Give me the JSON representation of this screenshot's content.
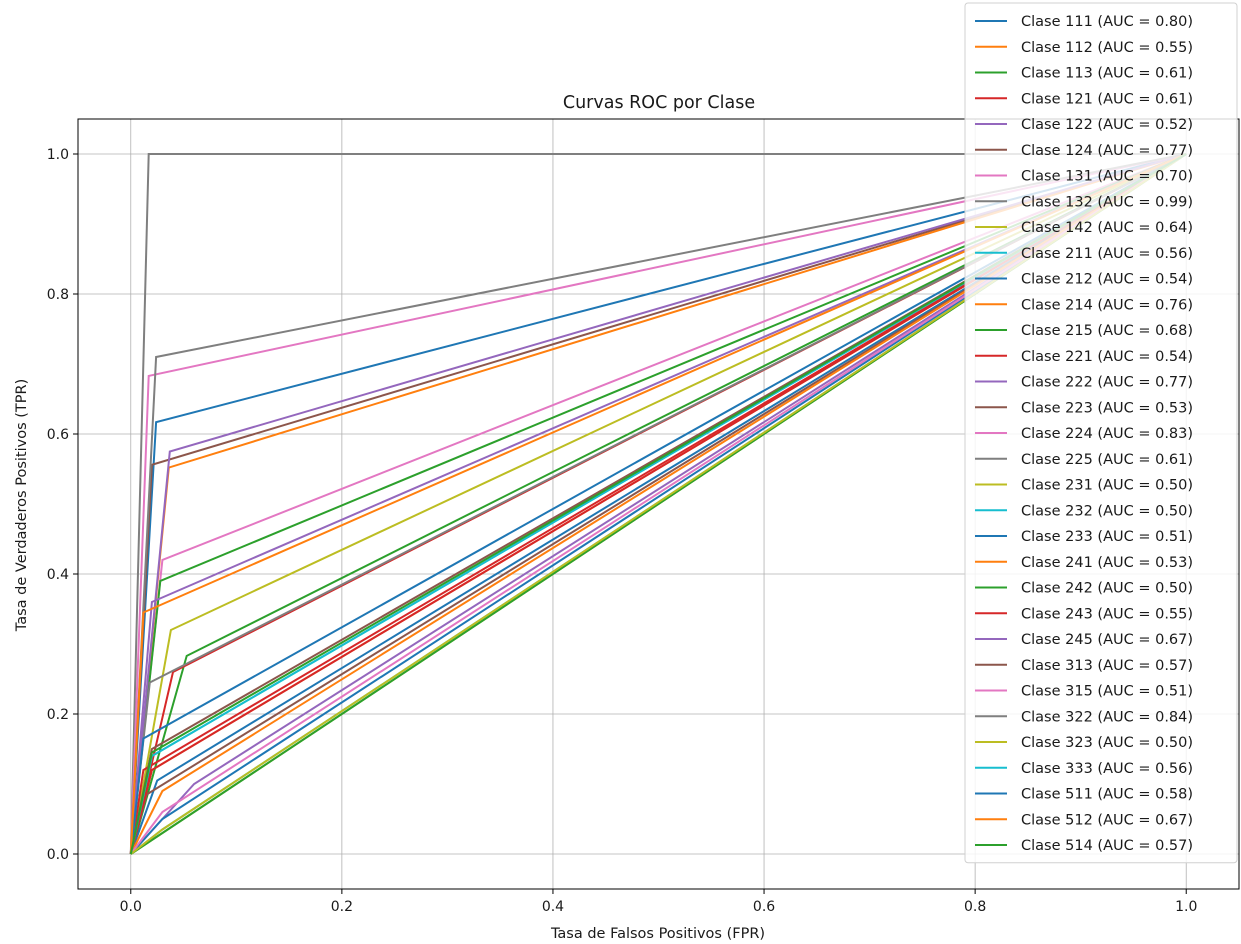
{
  "chart_data": {
    "type": "line",
    "title": "Curvas ROC por Clase",
    "xlabel": "Tasa de Falsos Positivos (FPR)",
    "ylabel": "Tasa de Verdaderos Positivos (TPR)",
    "xlim": [
      -0.05,
      1.05
    ],
    "ylim": [
      -0.05,
      1.05
    ],
    "xticks": [
      "0.0",
      "0.2",
      "0.4",
      "0.6",
      "0.8",
      "1.0"
    ],
    "yticks": [
      "0.0",
      "0.2",
      "0.4",
      "0.6",
      "0.8",
      "1.0"
    ],
    "grid": true,
    "legend_position": "top-right",
    "series": [
      {
        "name": "Clase 111 (AUC = 0.80)",
        "color": "#1f77b4",
        "x": [
          0,
          0.024,
          1
        ],
        "y": [
          0,
          0.617,
          1
        ]
      },
      {
        "name": "Clase 112 (AUC = 0.55)",
        "color": "#ff7f0e",
        "x": [
          0,
          0.02,
          1
        ],
        "y": [
          0,
          0.12,
          1
        ]
      },
      {
        "name": "Clase 113 (AUC = 0.61)",
        "color": "#2ca02c",
        "x": [
          0,
          0.053,
          1
        ],
        "y": [
          0,
          0.283,
          1
        ]
      },
      {
        "name": "Clase 121 (AUC = 0.61)",
        "color": "#d62728",
        "x": [
          0,
          0.04,
          1
        ],
        "y": [
          0,
          0.26,
          1
        ]
      },
      {
        "name": "Clase 122 (AUC = 0.52)",
        "color": "#9467bd",
        "x": [
          0,
          0.06,
          1
        ],
        "y": [
          0,
          0.1,
          1
        ]
      },
      {
        "name": "Clase 124 (AUC = 0.77)",
        "color": "#8c564b",
        "x": [
          0,
          0.02,
          1
        ],
        "y": [
          0,
          0.556,
          1
        ]
      },
      {
        "name": "Clase 131 (AUC = 0.70)",
        "color": "#e377c2",
        "x": [
          0,
          0.03,
          1
        ],
        "y": [
          0,
          0.42,
          1
        ]
      },
      {
        "name": "Clase 132 (AUC = 0.99)",
        "color": "#7f7f7f",
        "x": [
          0,
          0.017,
          1
        ],
        "y": [
          0,
          1.0,
          1
        ]
      },
      {
        "name": "Clase 142 (AUC = 0.64)",
        "color": "#bcbd22",
        "x": [
          0,
          0.038,
          1
        ],
        "y": [
          0,
          0.32,
          1
        ]
      },
      {
        "name": "Clase 211 (AUC = 0.56)",
        "color": "#17becf",
        "x": [
          0,
          0.02,
          1
        ],
        "y": [
          0,
          0.14,
          1
        ]
      },
      {
        "name": "Clase 212 (AUC = 0.54)",
        "color": "#1f77b4",
        "x": [
          0,
          0.025,
          1
        ],
        "y": [
          0,
          0.105,
          1
        ]
      },
      {
        "name": "Clase 214 (AUC = 0.76)",
        "color": "#ff7f0e",
        "x": [
          0,
          0.036,
          1
        ],
        "y": [
          0,
          0.552,
          1
        ]
      },
      {
        "name": "Clase 215 (AUC = 0.68)",
        "color": "#2ca02c",
        "x": [
          0,
          0.028,
          1
        ],
        "y": [
          0,
          0.39,
          1
        ]
      },
      {
        "name": "Clase 221 (AUC = 0.54)",
        "color": "#d62728",
        "x": [
          0,
          0.012,
          1
        ],
        "y": [
          0,
          0.12,
          1
        ]
      },
      {
        "name": "Clase 222 (AUC = 0.77)",
        "color": "#9467bd",
        "x": [
          0,
          0.037,
          1
        ],
        "y": [
          0,
          0.575,
          1
        ]
      },
      {
        "name": "Clase 223 (AUC = 0.53)",
        "color": "#8c564b",
        "x": [
          0,
          0.015,
          1
        ],
        "y": [
          0,
          0.085,
          1
        ]
      },
      {
        "name": "Clase 224 (AUC = 0.83)",
        "color": "#e377c2",
        "x": [
          0,
          0.017,
          1
        ],
        "y": [
          0,
          0.683,
          1
        ]
      },
      {
        "name": "Clase 225 (AUC = 0.61)",
        "color": "#7f7f7f",
        "x": [
          0,
          0.018,
          1
        ],
        "y": [
          0,
          0.245,
          1
        ]
      },
      {
        "name": "Clase 231 (AUC = 0.50)",
        "color": "#bcbd22",
        "x": [
          0,
          0.03,
          1
        ],
        "y": [
          0,
          0.03,
          1
        ]
      },
      {
        "name": "Clase 232 (AUC = 0.50)",
        "color": "#17becf",
        "x": [
          0,
          0.03,
          1
        ],
        "y": [
          0,
          0.035,
          1
        ]
      },
      {
        "name": "Clase 233 (AUC = 0.51)",
        "color": "#1f77b4",
        "x": [
          0,
          0.03,
          1
        ],
        "y": [
          0,
          0.05,
          1
        ]
      },
      {
        "name": "Clase 241 (AUC = 0.53)",
        "color": "#ff7f0e",
        "x": [
          0,
          0.03,
          1
        ],
        "y": [
          0,
          0.09,
          1
        ]
      },
      {
        "name": "Clase 242 (AUC = 0.50)",
        "color": "#2ca02c",
        "x": [
          0,
          0.02,
          1
        ],
        "y": [
          0,
          0.02,
          1
        ]
      },
      {
        "name": "Clase 243 (AUC = 0.55)",
        "color": "#d62728",
        "x": [
          0,
          0.02,
          1
        ],
        "y": [
          0,
          0.12,
          1
        ]
      },
      {
        "name": "Clase 245 (AUC = 0.67)",
        "color": "#9467bd",
        "x": [
          0,
          0.02,
          1
        ],
        "y": [
          0,
          0.36,
          1
        ]
      },
      {
        "name": "Clase 313 (AUC = 0.57)",
        "color": "#8c564b",
        "x": [
          0,
          0.02,
          1
        ],
        "y": [
          0,
          0.15,
          1
        ]
      },
      {
        "name": "Clase 315 (AUC = 0.51)",
        "color": "#e377c2",
        "x": [
          0,
          0.03,
          1
        ],
        "y": [
          0,
          0.06,
          1
        ]
      },
      {
        "name": "Clase 322 (AUC = 0.84)",
        "color": "#7f7f7f",
        "x": [
          0,
          0.024,
          1
        ],
        "y": [
          0,
          0.71,
          1
        ]
      },
      {
        "name": "Clase 323 (AUC = 0.50)",
        "color": "#bcbd22",
        "x": [
          0,
          0.03,
          1
        ],
        "y": [
          0,
          0.035,
          1
        ]
      },
      {
        "name": "Clase 333 (AUC = 0.56)",
        "color": "#17becf",
        "x": [
          0,
          0.02,
          1
        ],
        "y": [
          0,
          0.14,
          1
        ]
      },
      {
        "name": "Clase 511 (AUC = 0.58)",
        "color": "#1f77b4",
        "x": [
          0,
          0.012,
          1
        ],
        "y": [
          0,
          0.165,
          1
        ]
      },
      {
        "name": "Clase 512 (AUC = 0.67)",
        "color": "#ff7f0e",
        "x": [
          0,
          0.012,
          1
        ],
        "y": [
          0,
          0.345,
          1
        ]
      },
      {
        "name": "Clase 514 (AUC = 0.57)",
        "color": "#2ca02c",
        "x": [
          0,
          0.02,
          1
        ],
        "y": [
          0,
          0.145,
          1
        ]
      }
    ]
  }
}
